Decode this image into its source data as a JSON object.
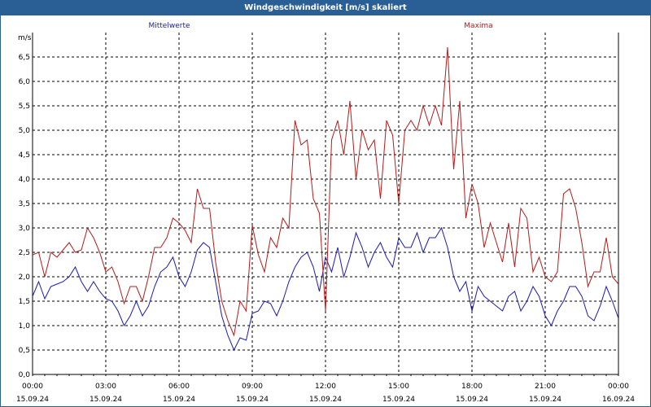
{
  "window": {
    "title": "Windgeschwindigkeit [m/s] skaliert"
  },
  "chart_data": {
    "type": "line",
    "title": "Windgeschwindigkeit [m/s] skaliert",
    "ylabel": "m/s",
    "ylim": [
      0,
      7.0
    ],
    "xlim": [
      0,
      24
    ],
    "grid": true,
    "y_ticks": [
      "0,0",
      "0,5",
      "1,0",
      "1,5",
      "2,0",
      "2,5",
      "3,0",
      "3,5",
      "4,0",
      "4,5",
      "5,0",
      "5,5",
      "6,0",
      "6,5"
    ],
    "x_ticks": [
      {
        "time": "00:00",
        "date": "15.09.24"
      },
      {
        "time": "03:00",
        "date": "15.09.24"
      },
      {
        "time": "06:00",
        "date": "15.09.24"
      },
      {
        "time": "09:00",
        "date": "15.09.24"
      },
      {
        "time": "12:00",
        "date": "15.09.24"
      },
      {
        "time": "15:00",
        "date": "15.09.24"
      },
      {
        "time": "18:00",
        "date": "15.09.24"
      },
      {
        "time": "21:00",
        "date": "15.09.24"
      },
      {
        "time": "00:00",
        "date": "16.09.24"
      }
    ],
    "series": [
      {
        "name": "Mittelwerte",
        "color": "#1a1ab4",
        "x": [
          0,
          0.25,
          0.5,
          0.75,
          1,
          1.25,
          1.5,
          1.75,
          2,
          2.25,
          2.5,
          2.75,
          3,
          3.25,
          3.5,
          3.75,
          4,
          4.25,
          4.5,
          4.75,
          5,
          5.25,
          5.5,
          5.75,
          6,
          6.25,
          6.5,
          6.75,
          7,
          7.25,
          7.5,
          7.75,
          8,
          8.25,
          8.5,
          8.75,
          9,
          9.25,
          9.5,
          9.75,
          10,
          10.25,
          10.5,
          10.75,
          11,
          11.25,
          11.5,
          11.75,
          12,
          12.25,
          12.5,
          12.75,
          13,
          13.25,
          13.5,
          13.75,
          14,
          14.25,
          14.5,
          14.75,
          15,
          15.25,
          15.5,
          15.75,
          16,
          16.25,
          16.5,
          16.75,
          17,
          17.25,
          17.5,
          17.75,
          18,
          18.25,
          18.5,
          18.75,
          19,
          19.25,
          19.5,
          19.75,
          20,
          20.25,
          20.5,
          20.75,
          21,
          21.25,
          21.5,
          21.75,
          22,
          22.25,
          22.5,
          22.75,
          23,
          23.25,
          23.5,
          23.75,
          24
        ],
        "y": [
          1.6,
          1.9,
          1.55,
          1.8,
          1.85,
          1.9,
          2.0,
          2.2,
          1.9,
          1.7,
          1.9,
          1.7,
          1.55,
          1.5,
          1.3,
          1.0,
          1.2,
          1.5,
          1.2,
          1.4,
          1.8,
          2.1,
          2.2,
          2.4,
          2.0,
          1.8,
          2.1,
          2.55,
          2.7,
          2.6,
          1.9,
          1.2,
          0.8,
          0.5,
          0.75,
          0.7,
          1.25,
          1.3,
          1.5,
          1.45,
          1.2,
          1.5,
          1.9,
          2.2,
          2.4,
          2.5,
          2.2,
          1.7,
          2.4,
          2.1,
          2.6,
          2.0,
          2.4,
          2.9,
          2.6,
          2.2,
          2.5,
          2.7,
          2.4,
          2.2,
          2.8,
          2.6,
          2.6,
          2.9,
          2.5,
          2.8,
          2.8,
          3.0,
          2.6,
          2.0,
          1.7,
          1.9,
          1.3,
          1.8,
          1.6,
          1.5,
          1.4,
          1.3,
          1.6,
          1.7,
          1.3,
          1.5,
          1.8,
          1.6,
          1.2,
          1.0,
          1.3,
          1.5,
          1.8,
          1.8,
          1.6,
          1.2,
          1.1,
          1.4,
          1.8,
          1.5,
          1.15
        ]
      },
      {
        "name": "Maxima",
        "color": "#b41a1a",
        "x": [
          0,
          0.25,
          0.5,
          0.75,
          1,
          1.25,
          1.5,
          1.75,
          2,
          2.25,
          2.5,
          2.75,
          3,
          3.25,
          3.5,
          3.75,
          4,
          4.25,
          4.5,
          4.75,
          5,
          5.25,
          5.5,
          5.75,
          6,
          6.25,
          6.5,
          6.75,
          7,
          7.25,
          7.5,
          7.75,
          8,
          8.25,
          8.5,
          8.75,
          9,
          9.25,
          9.5,
          9.75,
          10,
          10.25,
          10.5,
          10.75,
          11,
          11.25,
          11.5,
          11.75,
          12,
          12.25,
          12.5,
          12.75,
          13,
          13.25,
          13.5,
          13.75,
          14,
          14.25,
          14.5,
          14.75,
          15,
          15.25,
          15.5,
          15.75,
          16,
          16.25,
          16.5,
          16.75,
          17,
          17.25,
          17.5,
          17.75,
          18,
          18.25,
          18.5,
          18.75,
          19,
          19.25,
          19.5,
          19.75,
          20,
          20.25,
          20.5,
          20.75,
          21,
          21.25,
          21.5,
          21.75,
          22,
          22.25,
          22.5,
          22.75,
          23,
          23.25,
          23.5,
          23.75,
          24
        ],
        "y": [
          2.45,
          2.5,
          2.0,
          2.5,
          2.4,
          2.55,
          2.7,
          2.5,
          2.55,
          3.0,
          2.8,
          2.5,
          2.1,
          2.2,
          1.9,
          1.45,
          1.8,
          1.8,
          1.5,
          2.0,
          2.6,
          2.6,
          2.8,
          3.2,
          3.1,
          2.95,
          2.7,
          3.8,
          3.4,
          3.4,
          2.3,
          1.5,
          1.1,
          0.8,
          1.5,
          1.3,
          3.05,
          2.45,
          2.1,
          2.8,
          2.6,
          3.2,
          3.0,
          5.2,
          4.7,
          4.8,
          3.6,
          3.3,
          1.3,
          4.8,
          5.2,
          4.5,
          5.6,
          4.0,
          5.0,
          4.6,
          4.8,
          3.6,
          5.2,
          4.9,
          3.5,
          5.0,
          5.2,
          5.0,
          5.5,
          5.1,
          5.5,
          5.1,
          6.7,
          4.2,
          5.6,
          3.2,
          3.9,
          3.5,
          2.6,
          3.1,
          2.7,
          2.3,
          3.1,
          2.2,
          3.4,
          3.2,
          2.1,
          2.4,
          2.0,
          1.9,
          2.1,
          3.7,
          3.8,
          3.4,
          2.7,
          1.8,
          2.1,
          2.1,
          2.8,
          2.0,
          1.85
        ]
      }
    ]
  }
}
